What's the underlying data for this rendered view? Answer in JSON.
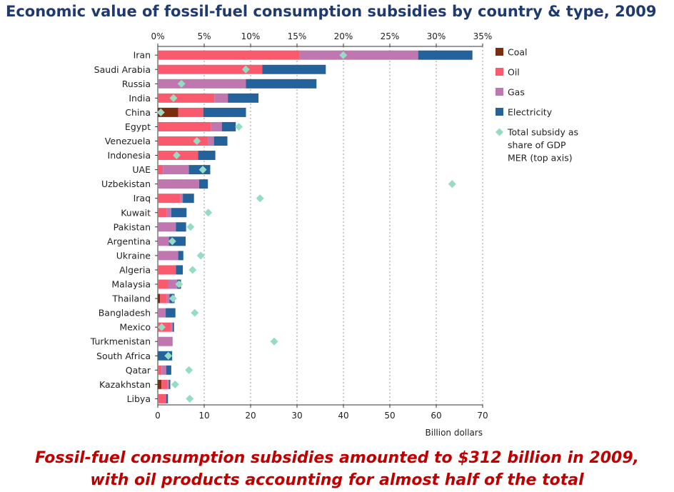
{
  "title": "Economic value of fossil-fuel consumption subsidies by country & type, 2009",
  "caption": {
    "line1": "Fossil-fuel consumption subsidies amounted to $312 billion in 2009,",
    "line2": "with oil products accounting for almost half of the total"
  },
  "chart_data": {
    "type": "bar",
    "orientation": "horizontal",
    "stacked": true,
    "xlabel": "Billion dollars",
    "xlim": [
      0,
      70
    ],
    "x_ticks": [
      "0",
      "10",
      "20",
      "30",
      "40",
      "50",
      "60",
      "70"
    ],
    "x_tick_values": [
      0,
      10,
      20,
      30,
      40,
      50,
      60,
      70
    ],
    "top_axis": {
      "label": "Total subsidy as share of GDP MER",
      "lim": [
        0,
        35
      ],
      "ticks": [
        "0%",
        "5%",
        "10%",
        "15%",
        "20%",
        "25%",
        "30%",
        "35%"
      ],
      "tick_values": [
        0,
        5,
        10,
        15,
        20,
        25,
        30,
        35
      ]
    },
    "grid": "vertical dotted",
    "legend_position": "right",
    "categories": [
      "Iran",
      "Saudi Arabia",
      "Russia",
      "India",
      "China",
      "Egypt",
      "Venezuela",
      "Indonesia",
      "UAE",
      "Uzbekistan",
      "Iraq",
      "Kuwait",
      "Pakistan",
      "Argentina",
      "Ukraine",
      "Algeria",
      "Malaysia",
      "Thailand",
      "Bangladesh",
      "Mexico",
      "Turkmenistan",
      "South Africa",
      "Qatar",
      "Kazakhstan",
      "Libya"
    ],
    "series": [
      {
        "name": "Coal",
        "color": "#7b2d0e",
        "values": [
          0,
          0,
          0,
          0,
          4.4,
          0,
          0,
          0,
          0,
          0,
          0,
          0,
          0,
          0,
          0,
          0,
          0,
          0.5,
          0,
          0,
          0,
          0,
          0,
          0.8,
          0
        ]
      },
      {
        "name": "Oil",
        "color": "#fa5a6e",
        "values": [
          30.6,
          22.5,
          0,
          12.2,
          5.4,
          11.4,
          10.9,
          8.7,
          1.1,
          0,
          4.9,
          1.9,
          0,
          0,
          0,
          3.9,
          2.3,
          1.4,
          0,
          2.9,
          0,
          0,
          0.8,
          1.3,
          1.8
        ]
      },
      {
        "name": "Gas",
        "color": "#c077b0",
        "values": [
          25.5,
          0,
          19.0,
          2.9,
          0,
          2.4,
          1.2,
          0,
          5.6,
          8.9,
          0.5,
          1.0,
          3.9,
          2.4,
          4.4,
          0,
          1.9,
          0.6,
          1.7,
          0.3,
          3.2,
          0,
          1.0,
          0.3,
          0
        ]
      },
      {
        "name": "Electricity",
        "color": "#23629b",
        "values": [
          11.7,
          13.7,
          15.2,
          6.6,
          9.2,
          3.0,
          2.9,
          3.7,
          4.6,
          1.9,
          2.4,
          3.3,
          2.2,
          3.6,
          1.1,
          1.5,
          0.8,
          1.1,
          2.1,
          0.3,
          0,
          3.1,
          1.1,
          0.3,
          0.4
        ]
      }
    ],
    "markers": {
      "name": "Total subsidy as share of GDP MER (top axis)",
      "color": "#96dcc3",
      "values_percent": [
        19.98,
        9.48,
        2.55,
        1.69,
        0.33,
        8.74,
        4.21,
        2.03,
        4.85,
        31.71,
        11.02,
        5.44,
        3.53,
        1.56,
        4.63,
        3.75,
        2.29,
        1.64,
        3.98,
        0.42,
        12.54,
        1.13,
        3.36,
        1.87,
        3.44
      ]
    }
  }
}
